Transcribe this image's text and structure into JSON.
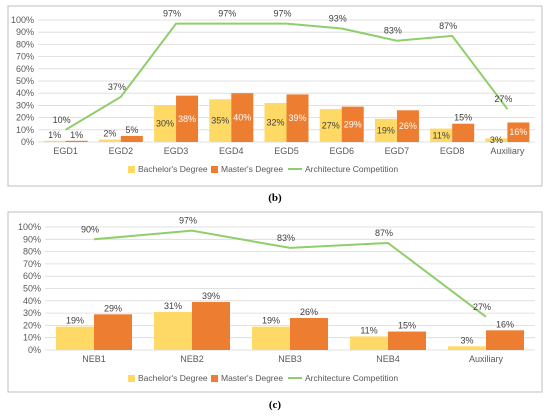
{
  "colors": {
    "bachelor": "#FFD966",
    "master": "#ED7D31",
    "competition": "#8FCE6B",
    "grid": "#D9D9D9",
    "frame": "#BFBFBF"
  },
  "chart_data": [
    {
      "panel": "(b)",
      "type": "bar",
      "categories": [
        "EGD1",
        "EGD2",
        "EGD3",
        "EGD4",
        "EGD5",
        "EGD6",
        "EGD7",
        "EGD8",
        "Auxiliary"
      ],
      "ylim": [
        0,
        100
      ],
      "yticks": [
        "0%",
        "10%",
        "20%",
        "30%",
        "40%",
        "50%",
        "60%",
        "70%",
        "80%",
        "90%",
        "100%"
      ],
      "grid": true,
      "legend": "bottom",
      "series": [
        {
          "name": "Bachelor's Degree",
          "kind": "bar",
          "values": [
            1,
            2,
            30,
            35,
            32,
            27,
            19,
            11,
            3
          ],
          "labels": [
            "1%",
            "2%",
            "30%",
            "35%",
            "32%",
            "27%",
            "19%",
            "11%",
            "3%"
          ]
        },
        {
          "name": "Master's Degree",
          "kind": "bar",
          "values": [
            1,
            5,
            38,
            40,
            39,
            29,
            26,
            15,
            16
          ],
          "labels": [
            "1%",
            "5%",
            "38%",
            "40%",
            "39%",
            "29%",
            "26%",
            "15%",
            "16%"
          ]
        },
        {
          "name": "Architecture Competition",
          "kind": "line",
          "values": [
            10,
            37,
            97,
            97,
            97,
            93,
            83,
            87,
            27
          ],
          "labels": [
            "10%",
            "37%",
            "97%",
            "97%",
            "97%",
            "93%",
            "83%",
            "87%",
            "27%"
          ]
        }
      ]
    },
    {
      "panel": "(c)",
      "type": "bar",
      "categories": [
        "NEB1",
        "NEB2",
        "NEB3",
        "NEB4",
        "Auxiliary"
      ],
      "ylim": [
        0,
        100
      ],
      "yticks": [
        "0%",
        "10%",
        "20%",
        "30%",
        "40%",
        "50%",
        "60%",
        "70%",
        "80%",
        "90%",
        "100%"
      ],
      "grid": true,
      "legend": "bottom",
      "series": [
        {
          "name": "Bachelor's Degree",
          "kind": "bar",
          "values": [
            19,
            31,
            19,
            11,
            3
          ],
          "labels": [
            "19%",
            "31%",
            "19%",
            "11%",
            "3%"
          ]
        },
        {
          "name": "Master's Degree",
          "kind": "bar",
          "values": [
            29,
            39,
            26,
            15,
            16
          ],
          "labels": [
            "29%",
            "39%",
            "26%",
            "15%",
            "16%"
          ]
        },
        {
          "name": "Architecture Competition",
          "kind": "line",
          "values": [
            90,
            97,
            83,
            87,
            27
          ],
          "labels": [
            "90%",
            "97%",
            "83%",
            "87%",
            "27%"
          ]
        }
      ]
    }
  ]
}
